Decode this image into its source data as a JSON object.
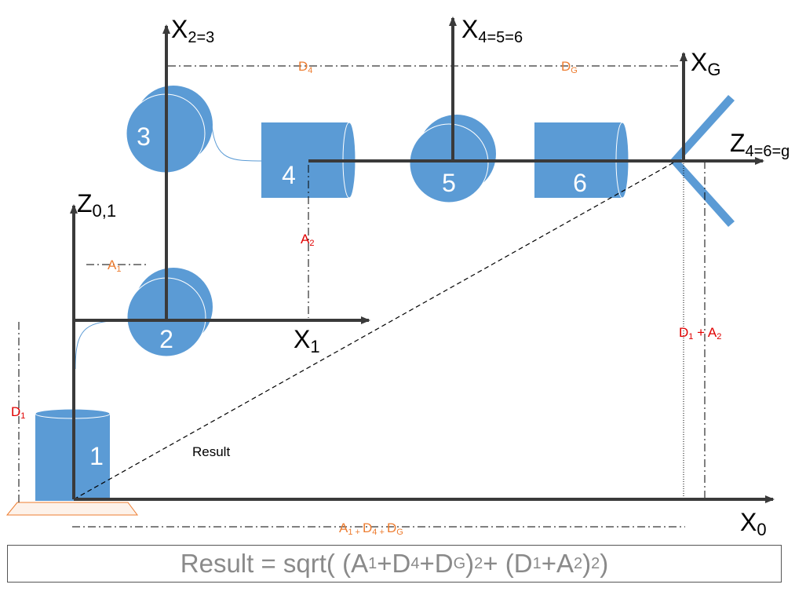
{
  "colors": {
    "joint_fill": "#5b9bd5",
    "axis": "#3a3a3a",
    "orange": "#ed7d31",
    "red": "#e00000",
    "black": "#000000",
    "formula_text": "#8a8a8a"
  },
  "joints": {
    "j1": "1",
    "j2": "2",
    "j3": "3",
    "j4": "4",
    "j5": "5",
    "j6": "6"
  },
  "axes": {
    "x_2_3": {
      "main": "X",
      "sub": "2=3"
    },
    "x_4_5_6": {
      "main": "X",
      "sub": "4=5=6"
    },
    "x_g": {
      "main": "X",
      "sub": "G"
    },
    "z_4_6_g": {
      "main": "Z",
      "sub": "4=6=g"
    },
    "z_0_1": {
      "main": "Z",
      "sub": "0,1"
    },
    "x_1": {
      "main": "X",
      "sub": "1"
    },
    "x_0": {
      "main": "X",
      "sub": "0"
    }
  },
  "dimensions": {
    "d4": {
      "main": "D",
      "sub": "4"
    },
    "dg": {
      "main": "D",
      "sub": "G"
    },
    "a1": {
      "main": "A",
      "sub": "1"
    },
    "a2": {
      "main": "A",
      "sub": "2"
    },
    "d1": {
      "main": "D",
      "sub": "1"
    },
    "d1_plus_a2": {
      "d": "D",
      "d_sub": "1",
      "plus": " + ",
      "a": "A",
      "a_sub": "2"
    },
    "sum_bottom": {
      "a": "A",
      "a_sub": "1 + ",
      "d": "D",
      "d_sub": "4 + ",
      "g": "D",
      "g_sub": "G"
    }
  },
  "result_label": "Result",
  "formula": {
    "prefix": "Result = sqrt( (",
    "a": "A",
    "a_sub": "1",
    "plus1": "+",
    "d": "D",
    "d_sub": "4",
    "plus2": "+",
    "dg": "D",
    "dg_sub": "G",
    "close1": ")",
    "exp1": "2",
    "middle": " + (",
    "d1": "D",
    "d1_sub": "1",
    "plus3": "+",
    "a2": "A",
    "a2_sub": "2",
    "close2": ")",
    "exp2": "2",
    "suffix": " )"
  }
}
